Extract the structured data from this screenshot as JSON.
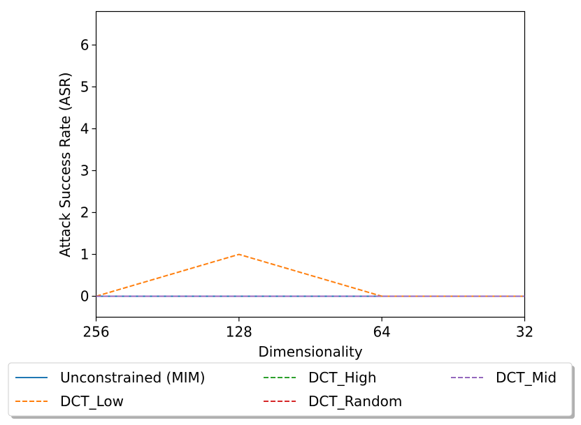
{
  "chart_data": {
    "type": "line",
    "title": "",
    "xlabel": "Dimensionality",
    "ylabel": "Attack Success Rate (ASR)",
    "x": [
      "256",
      "128",
      "64",
      "32"
    ],
    "ylim": [
      -0.5,
      6.8
    ],
    "yticks": [
      0,
      1,
      2,
      3,
      4,
      5,
      6
    ],
    "grid": false,
    "legend_position": "bottom-outside",
    "series": [
      {
        "name": "Unconstrained (MIM)",
        "values": [
          0,
          0,
          0,
          0
        ],
        "color": "#1f77b4",
        "style": "solid"
      },
      {
        "name": "DCT_Low",
        "values": [
          0,
          1,
          0,
          0
        ],
        "color": "#ff7f0e",
        "style": "dashed"
      },
      {
        "name": "DCT_High",
        "values": [
          0,
          0,
          0,
          0
        ],
        "color": "#2ca02c",
        "style": "dashed"
      },
      {
        "name": "DCT_Random",
        "values": [
          0,
          0,
          0,
          0
        ],
        "color": "#d62728",
        "style": "dashed"
      },
      {
        "name": "DCT_Mid",
        "values": [
          0,
          0,
          0,
          0
        ],
        "color": "#9467bd",
        "style": "dashed"
      }
    ]
  }
}
